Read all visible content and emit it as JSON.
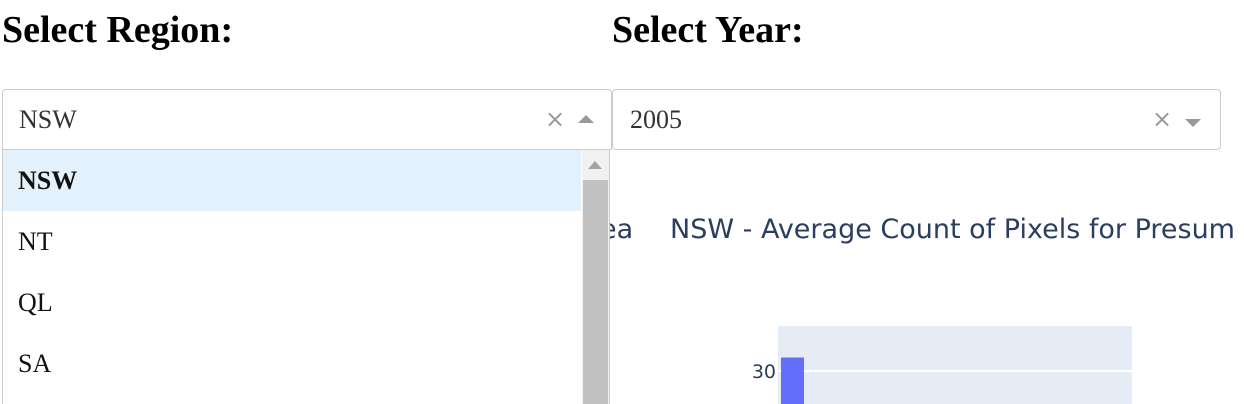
{
  "region_filter": {
    "heading": "Select Region:",
    "selected": "NSW",
    "clear_glyph": "×",
    "options": [
      "NSW",
      "NT",
      "QL",
      "SA"
    ]
  },
  "year_filter": {
    "heading": "Select Year:",
    "selected": "2005",
    "clear_glyph": "×"
  },
  "graphs": {
    "left_title_fragment": "ea",
    "right_title": "NSW - Average Count of Pixels for Presum"
  },
  "colors": {
    "bar": "#636efa",
    "plot_bg": "#e5ecf6",
    "title": "#2a3f5f",
    "option_highlight": "#e3f1fd"
  },
  "chart_data": {
    "type": "bar",
    "title": "NSW - Average Count of Pixels for Presum",
    "y_tick_labels": [
      "30"
    ],
    "series": [
      {
        "values": [
          33
        ]
      }
    ]
  }
}
